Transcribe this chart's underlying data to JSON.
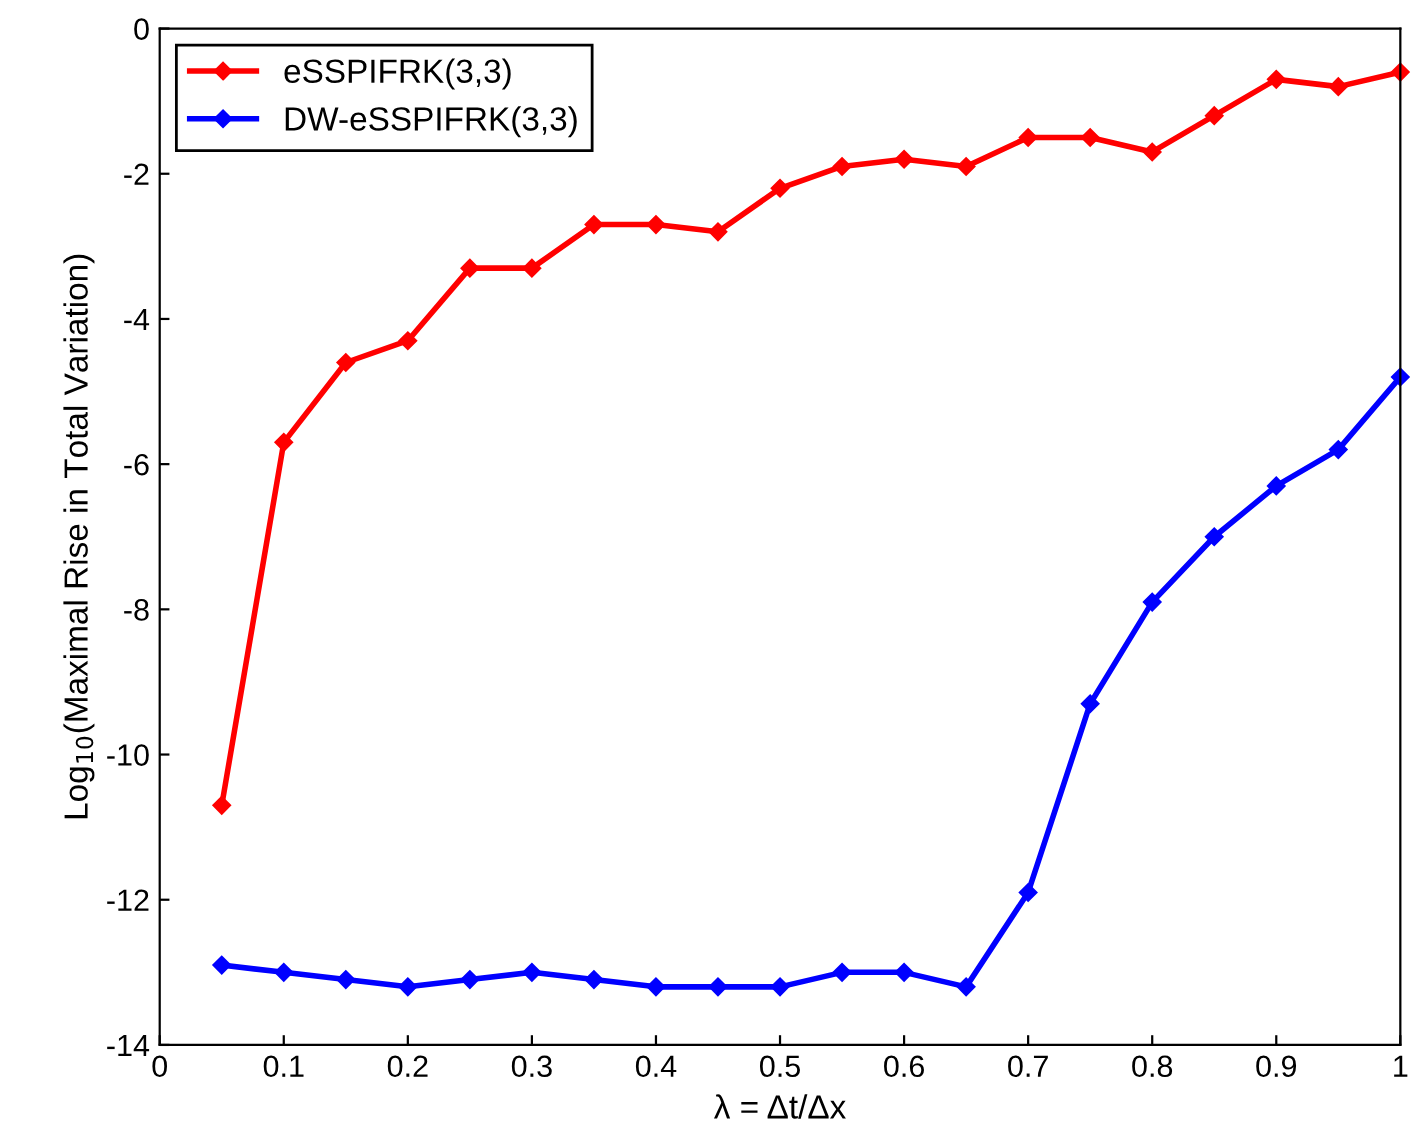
{
  "chart_data": {
    "type": "line",
    "xlabel": "λ = Δt/Δx",
    "ylabel": "Log$_{10}$(Maximal Rise in Total Variation)",
    "x": [
      0.05,
      0.1,
      0.15,
      0.2,
      0.25,
      0.3,
      0.35,
      0.4,
      0.45,
      0.5,
      0.55,
      0.6,
      0.65,
      0.7,
      0.75,
      0.8,
      0.85,
      0.9,
      0.95,
      1.0
    ],
    "series": [
      {
        "name": "eSSPIFRK(3,3)",
        "color": "#ff0000",
        "values": [
          -10.7,
          -5.7,
          -4.6,
          -4.3,
          -3.3,
          -3.3,
          -2.7,
          -2.7,
          -2.8,
          -2.2,
          -1.9,
          -1.8,
          -1.9,
          -1.5,
          -1.5,
          -1.7,
          -1.2,
          -0.7,
          -0.8,
          -0.6
        ]
      },
      {
        "name": "DW-eSSPIFRK(3,3)",
        "color": "#0000ff",
        "values": [
          -12.9,
          -13.0,
          -13.1,
          -13.2,
          -13.1,
          -13.0,
          -13.1,
          -13.2,
          -13.2,
          -13.2,
          -13.0,
          -13.0,
          -13.2,
          -11.9,
          -9.3,
          -7.9,
          -7.0,
          -6.3,
          -5.8,
          -4.8
        ]
      }
    ],
    "xlim": [
      0,
      1
    ],
    "ylim": [
      -14,
      0
    ],
    "xticks": [
      0,
      0.1,
      0.2,
      0.3,
      0.4,
      0.5,
      0.6,
      0.7,
      0.8,
      0.9,
      1
    ],
    "yticks": [
      -14,
      -12,
      -10,
      -8,
      -6,
      -4,
      -2,
      0
    ],
    "grid": false,
    "legend": "top left",
    "marker": "diamond",
    "line_style": "solid"
  }
}
